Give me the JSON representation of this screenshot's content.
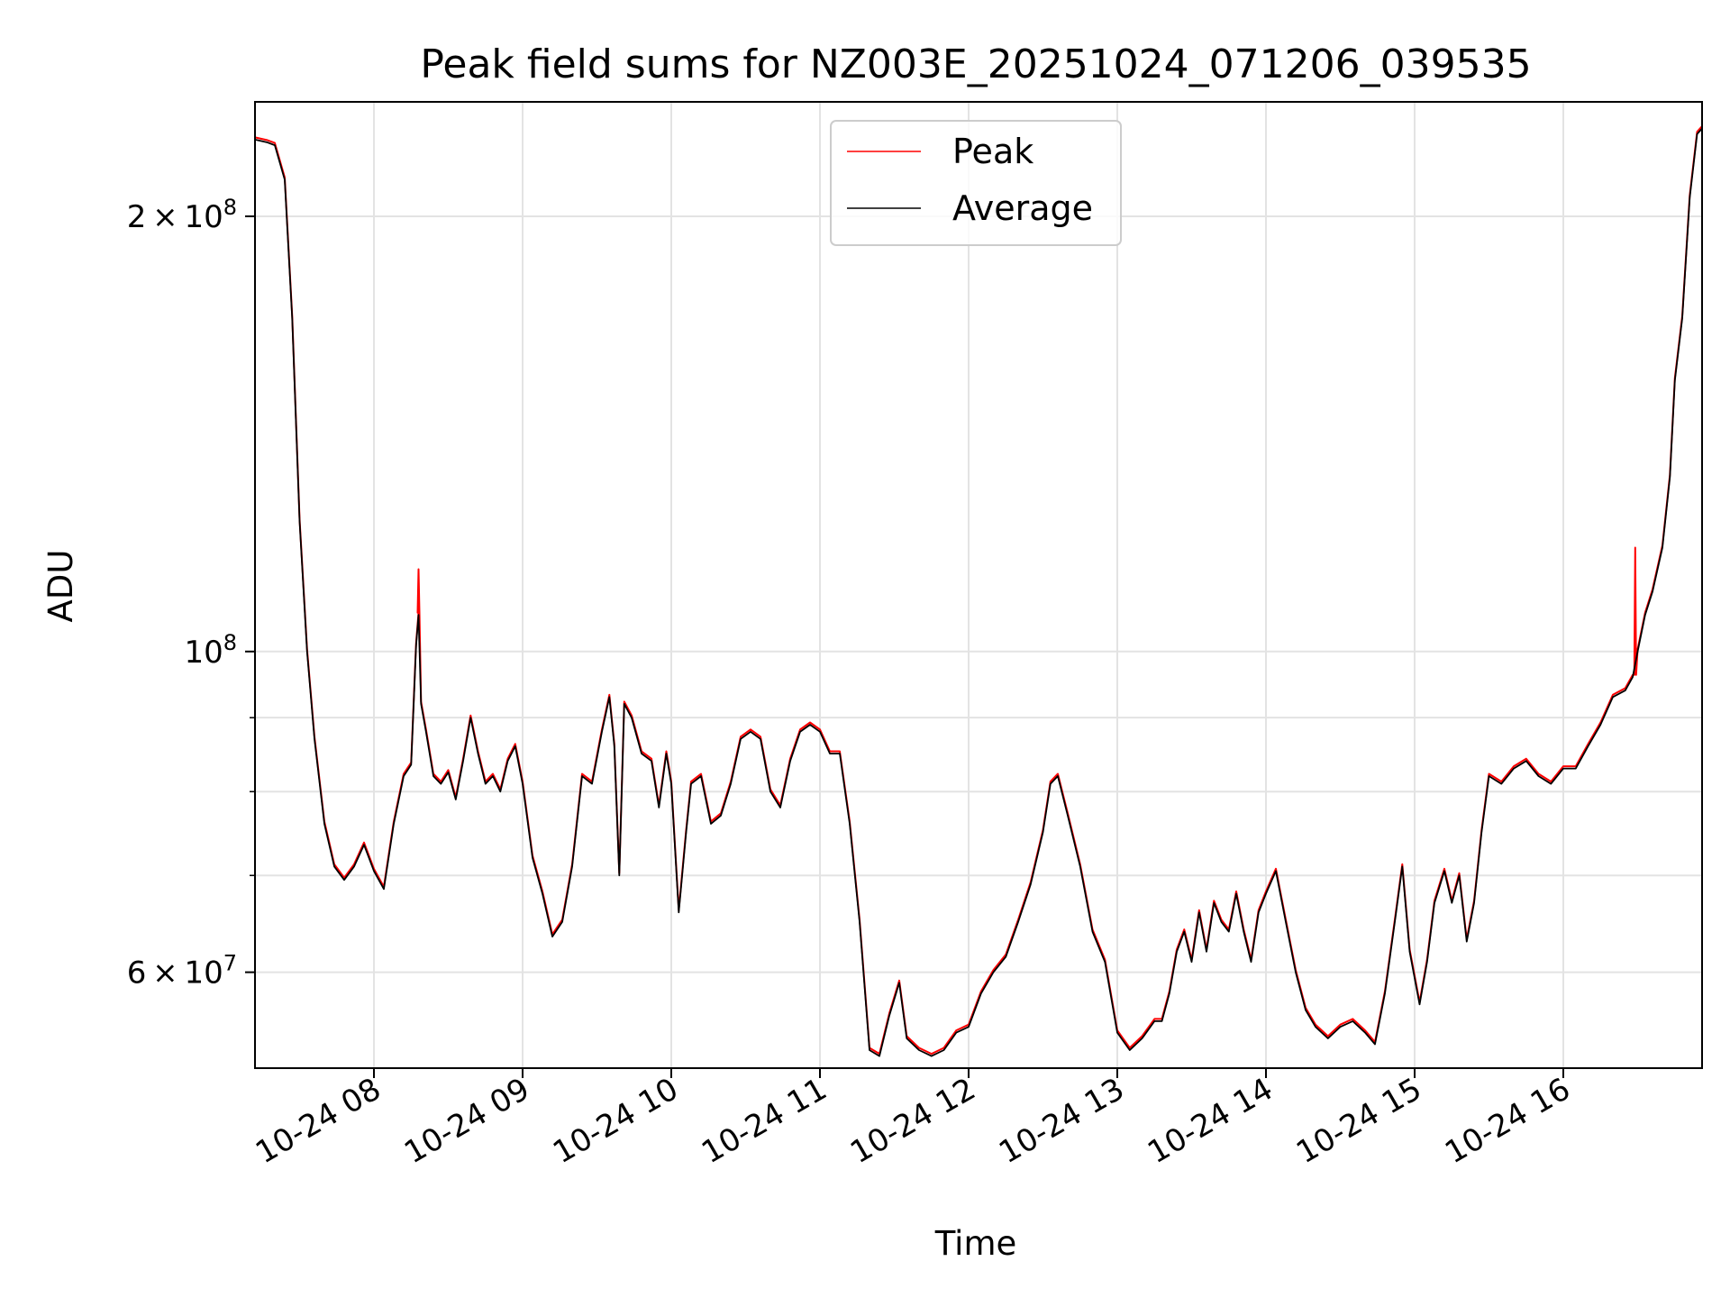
{
  "chart_data": {
    "type": "line",
    "title": "Peak field sums for NZ003E_20251024_071206_039535",
    "xlabel": "Time",
    "ylabel": "ADU",
    "yscale": "log",
    "ylim": [
      51500000,
      240000000
    ],
    "xlim": [
      "2025-10-24T07:12:00",
      "2025-10-24T16:56:00"
    ],
    "x_tick_labels": [
      "10-24 08",
      "10-24 09",
      "10-24 10",
      "10-24 11",
      "10-24 12",
      "10-24 13",
      "10-24 14",
      "10-24 15",
      "10-24 16"
    ],
    "x_tick_values": [
      "2025-10-24T08:00",
      "2025-10-24T09:00",
      "2025-10-24T10:00",
      "2025-10-24T11:00",
      "2025-10-24T12:00",
      "2025-10-24T13:00",
      "2025-10-24T14:00",
      "2025-10-24T15:00",
      "2025-10-24T16:00"
    ],
    "y_major_ticks": [
      {
        "value": 60000000,
        "mantissa": "6",
        "exponent": "7"
      },
      {
        "value": 100000000,
        "mantissa": "",
        "exponent": "8"
      },
      {
        "value": 200000000,
        "mantissa": "2",
        "exponent": "8"
      }
    ],
    "y_minor_gridlines": [
      70000000,
      80000000,
      90000000
    ],
    "grid": true,
    "legend_position": "top-center",
    "series": [
      {
        "name": "Peak",
        "color": "#ff0000",
        "spikes": [
          {
            "t": "2025-10-24T08:18",
            "v": 114000000
          },
          {
            "t": "2025-10-24T16:29",
            "v": 118000000
          }
        ]
      },
      {
        "name": "Average",
        "color": "#000000",
        "x": [
          "2025-10-24T07:12",
          "2025-10-24T07:17",
          "2025-10-24T07:20",
          "2025-10-24T07:24",
          "2025-10-24T07:27",
          "2025-10-24T07:30",
          "2025-10-24T07:33",
          "2025-10-24T07:36",
          "2025-10-24T07:40",
          "2025-10-24T07:44",
          "2025-10-24T07:48",
          "2025-10-24T07:52",
          "2025-10-24T07:56",
          "2025-10-24T08:00",
          "2025-10-24T08:04",
          "2025-10-24T08:08",
          "2025-10-24T08:12",
          "2025-10-24T08:15",
          "2025-10-24T08:17",
          "2025-10-24T08:18",
          "2025-10-24T08:19",
          "2025-10-24T08:21",
          "2025-10-24T08:24",
          "2025-10-24T08:27",
          "2025-10-24T08:30",
          "2025-10-24T08:33",
          "2025-10-24T08:36",
          "2025-10-24T08:39",
          "2025-10-24T08:42",
          "2025-10-24T08:45",
          "2025-10-24T08:48",
          "2025-10-24T08:51",
          "2025-10-24T08:54",
          "2025-10-24T08:57",
          "2025-10-24T09:00",
          "2025-10-24T09:04",
          "2025-10-24T09:08",
          "2025-10-24T09:12",
          "2025-10-24T09:16",
          "2025-10-24T09:20",
          "2025-10-24T09:24",
          "2025-10-24T09:28",
          "2025-10-24T09:32",
          "2025-10-24T09:35",
          "2025-10-24T09:37",
          "2025-10-24T09:39",
          "2025-10-24T09:41",
          "2025-10-24T09:44",
          "2025-10-24T09:48",
          "2025-10-24T09:52",
          "2025-10-24T09:55",
          "2025-10-24T09:58",
          "2025-10-24T10:00",
          "2025-10-24T10:03",
          "2025-10-24T10:06",
          "2025-10-24T10:08",
          "2025-10-24T10:12",
          "2025-10-24T10:16",
          "2025-10-24T10:20",
          "2025-10-24T10:24",
          "2025-10-24T10:28",
          "2025-10-24T10:32",
          "2025-10-24T10:36",
          "2025-10-24T10:40",
          "2025-10-24T10:44",
          "2025-10-24T10:48",
          "2025-10-24T10:52",
          "2025-10-24T10:56",
          "2025-10-24T11:00",
          "2025-10-24T11:04",
          "2025-10-24T11:08",
          "2025-10-24T11:12",
          "2025-10-24T11:16",
          "2025-10-24T11:20",
          "2025-10-24T11:24",
          "2025-10-24T11:28",
          "2025-10-24T11:32",
          "2025-10-24T11:35",
          "2025-10-24T11:40",
          "2025-10-24T11:45",
          "2025-10-24T11:50",
          "2025-10-24T11:55",
          "2025-10-24T12:00",
          "2025-10-24T12:05",
          "2025-10-24T12:10",
          "2025-10-24T12:15",
          "2025-10-24T12:20",
          "2025-10-24T12:25",
          "2025-10-24T12:30",
          "2025-10-24T12:33",
          "2025-10-24T12:36",
          "2025-10-24T12:40",
          "2025-10-24T12:45",
          "2025-10-24T12:50",
          "2025-10-24T12:55",
          "2025-10-24T13:00",
          "2025-10-24T13:05",
          "2025-10-24T13:10",
          "2025-10-24T13:15",
          "2025-10-24T13:18",
          "2025-10-24T13:21",
          "2025-10-24T13:24",
          "2025-10-24T13:27",
          "2025-10-24T13:30",
          "2025-10-24T13:33",
          "2025-10-24T13:36",
          "2025-10-24T13:39",
          "2025-10-24T13:42",
          "2025-10-24T13:45",
          "2025-10-24T13:48",
          "2025-10-24T13:51",
          "2025-10-24T13:54",
          "2025-10-24T13:57",
          "2025-10-24T14:00",
          "2025-10-24T14:04",
          "2025-10-24T14:08",
          "2025-10-24T14:12",
          "2025-10-24T14:16",
          "2025-10-24T14:20",
          "2025-10-24T14:25",
          "2025-10-24T14:30",
          "2025-10-24T14:35",
          "2025-10-24T14:40",
          "2025-10-24T14:44",
          "2025-10-24T14:48",
          "2025-10-24T14:52",
          "2025-10-24T14:55",
          "2025-10-24T14:58",
          "2025-10-24T15:02",
          "2025-10-24T15:05",
          "2025-10-24T15:08",
          "2025-10-24T15:12",
          "2025-10-24T15:15",
          "2025-10-24T15:18",
          "2025-10-24T15:21",
          "2025-10-24T15:24",
          "2025-10-24T15:27",
          "2025-10-24T15:30",
          "2025-10-24T15:35",
          "2025-10-24T15:40",
          "2025-10-24T15:45",
          "2025-10-24T15:50",
          "2025-10-24T15:55",
          "2025-10-24T16:00",
          "2025-10-24T16:05",
          "2025-10-24T16:10",
          "2025-10-24T16:15",
          "2025-10-24T16:20",
          "2025-10-24T16:25",
          "2025-10-24T16:28",
          "2025-10-24T16:30",
          "2025-10-24T16:33",
          "2025-10-24T16:36",
          "2025-10-24T16:40",
          "2025-10-24T16:43",
          "2025-10-24T16:45",
          "2025-10-24T16:48",
          "2025-10-24T16:51",
          "2025-10-24T16:54",
          "2025-10-24T16:56"
        ],
        "values": [
          226000000,
          225000000,
          224000000,
          212000000,
          170000000,
          123000000,
          100000000,
          87000000,
          76000000,
          71000000,
          69500000,
          71000000,
          73500000,
          70500000,
          68500000,
          76000000,
          82000000,
          83500000,
          101000000,
          106000000,
          92000000,
          88000000,
          82000000,
          81000000,
          82500000,
          79000000,
          84000000,
          90000000,
          85000000,
          81000000,
          82000000,
          80000000,
          84000000,
          86000000,
          81000000,
          72000000,
          68000000,
          63500000,
          65000000,
          71000000,
          82000000,
          81000000,
          88000000,
          93000000,
          86000000,
          70000000,
          92000000,
          90000000,
          85000000,
          84000000,
          78000000,
          85000000,
          81000000,
          66000000,
          75000000,
          81000000,
          82000000,
          76000000,
          77000000,
          81000000,
          87000000,
          88000000,
          87000000,
          80000000,
          78000000,
          84000000,
          88000000,
          89000000,
          88000000,
          85000000,
          85000000,
          76000000,
          65000000,
          53000000,
          52500000,
          56000000,
          59000000,
          54000000,
          53000000,
          52500000,
          53000000,
          54500000,
          55000000,
          58000000,
          60000000,
          61500000,
          65000000,
          69000000,
          75000000,
          81000000,
          82000000,
          77000000,
          71000000,
          64000000,
          61000000,
          54500000,
          53000000,
          54000000,
          55500000,
          55500000,
          58000000,
          62000000,
          64000000,
          61000000,
          66000000,
          62000000,
          67000000,
          65000000,
          64000000,
          68000000,
          64000000,
          61000000,
          66000000,
          68000000,
          70500000,
          65000000,
          60000000,
          56500000,
          55000000,
          54000000,
          55000000,
          55500000,
          54500000,
          53500000,
          58000000,
          65000000,
          71000000,
          62000000,
          57000000,
          61000000,
          67000000,
          70500000,
          67000000,
          70000000,
          63000000,
          67000000,
          75000000,
          82000000,
          81000000,
          83000000,
          84000000,
          82000000,
          81000000,
          83000000,
          83000000,
          86000000,
          89000000,
          93000000,
          94000000,
          96000000,
          100000000,
          106000000,
          110000000,
          118000000,
          132000000,
          154000000,
          170000000,
          206000000,
          228000000,
          230000000
        ]
      }
    ]
  }
}
